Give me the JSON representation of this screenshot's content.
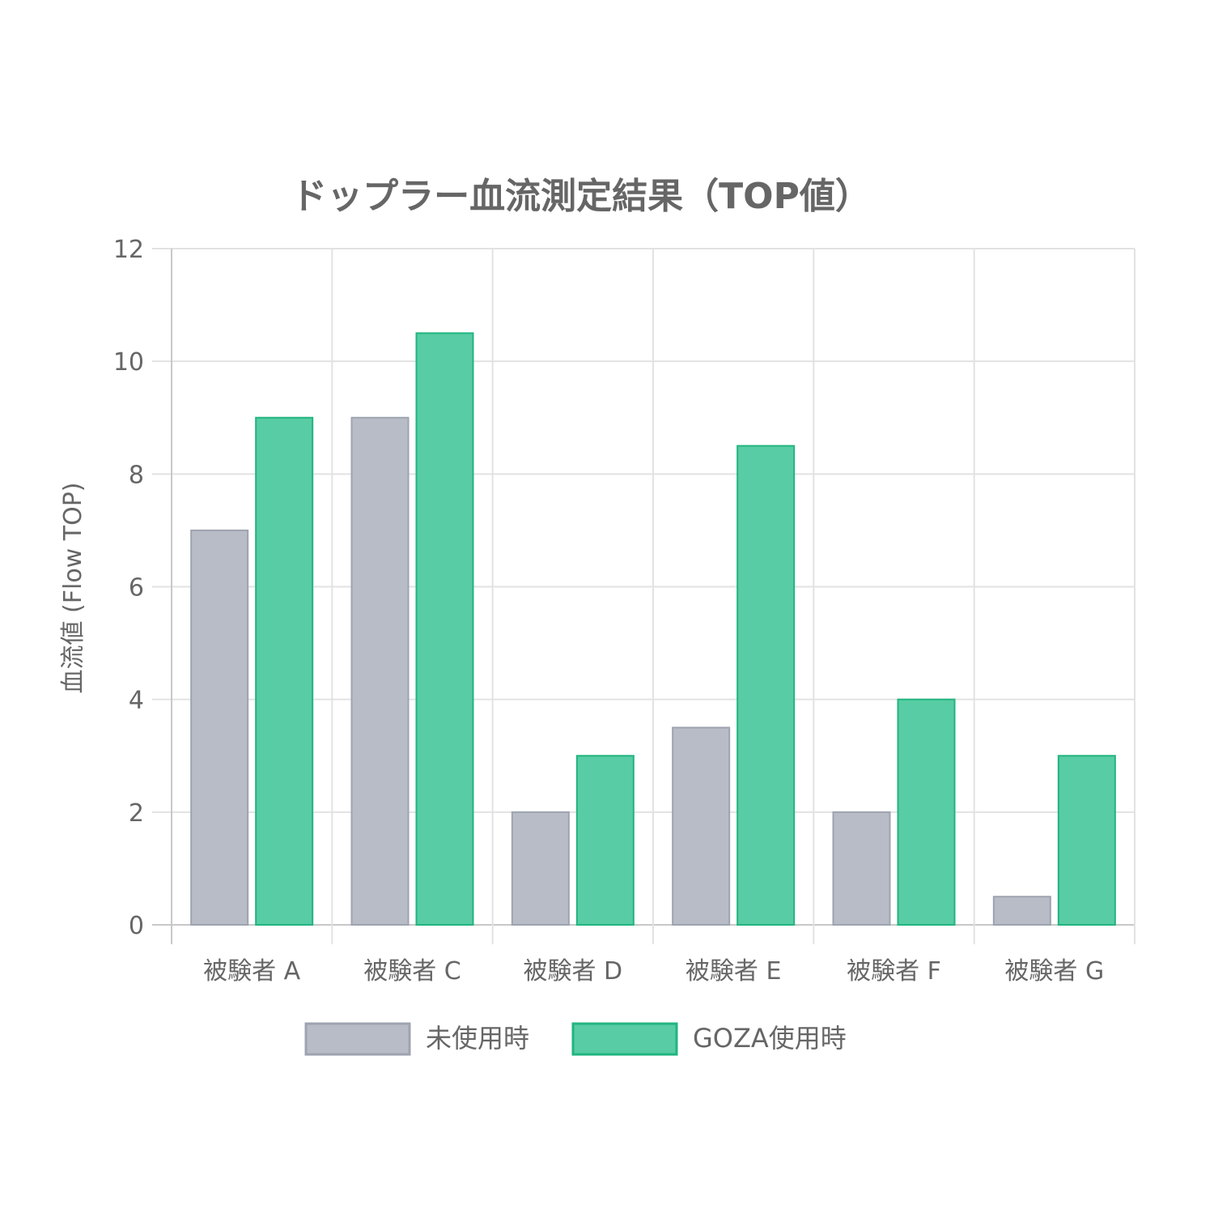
{
  "chart_data": {
    "type": "bar",
    "title": "ドップラー血流測定結果（TOP値）",
    "xlabel": "",
    "ylabel": "血流値 (Flow TOP)",
    "categories": [
      "被験者 A",
      "被験者 C",
      "被験者 D",
      "被験者 E",
      "被験者 F",
      "被験者 G"
    ],
    "series": [
      {
        "name": "未使用時",
        "values": [
          7,
          9,
          2,
          3.5,
          2,
          0.5
        ],
        "fill": "#b8bcc7",
        "stroke": "#9ea3b0"
      },
      {
        "name": "GOZA使用時",
        "values": [
          9,
          10.5,
          3,
          8.5,
          4,
          3
        ],
        "fill": "#58cca5",
        "stroke": "#21b57f"
      }
    ],
    "ylim": [
      0,
      12
    ],
    "yticks": [
      "0",
      "2",
      "4",
      "6",
      "8",
      "10",
      "12"
    ],
    "grid": true,
    "legend_position": "bottom"
  }
}
